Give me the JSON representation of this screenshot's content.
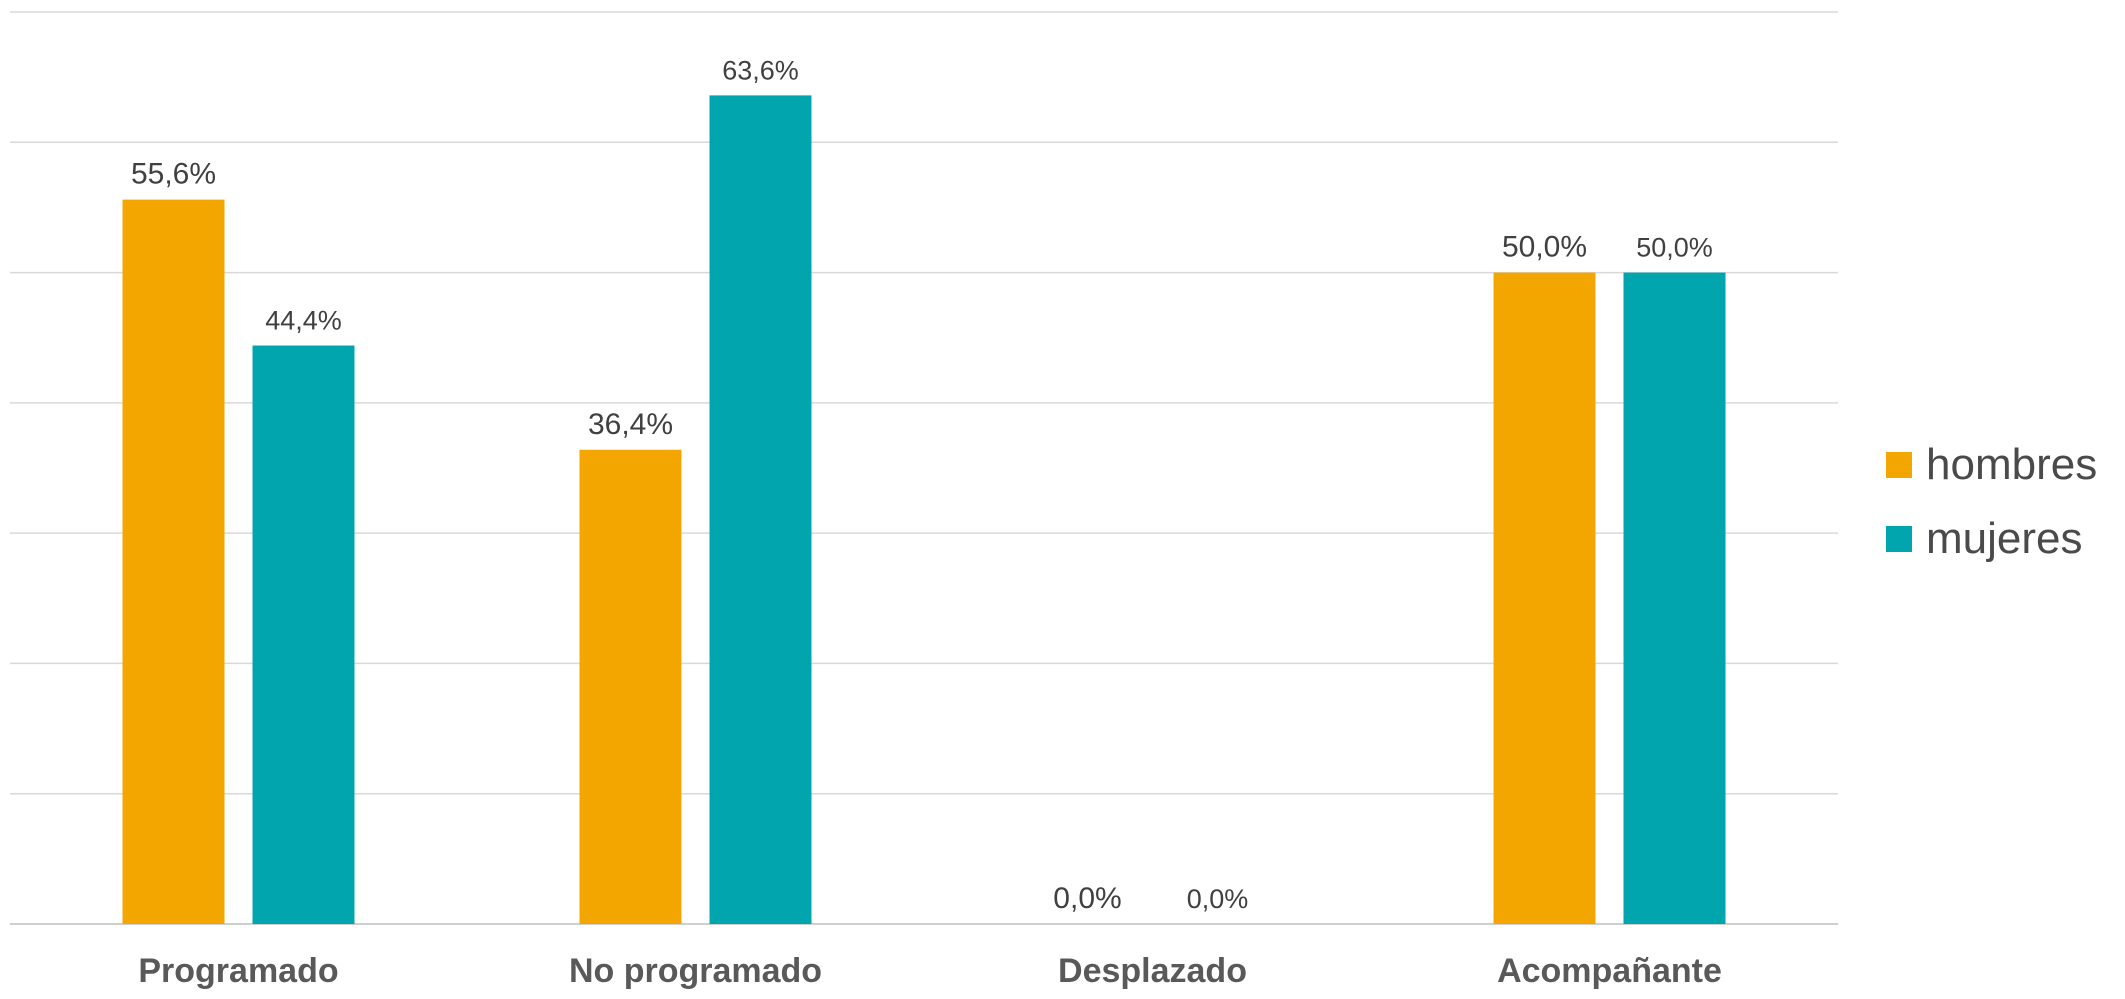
{
  "chart_data": {
    "type": "bar",
    "categories": [
      "Programado",
      "No programado",
      "Desplazado",
      "Acompañante"
    ],
    "series": [
      {
        "name": "hombres",
        "color": "#F4A600",
        "values": [
          55.6,
          36.4,
          0.0,
          50.0
        ],
        "labels": [
          "55,6%",
          "36,4%",
          "0,0%",
          "50,0%"
        ]
      },
      {
        "name": "mujeres",
        "color": "#00A5AE",
        "values": [
          44.4,
          63.6,
          0.0,
          50.0
        ],
        "labels": [
          "44,4%",
          "63,6%",
          "0,0%",
          "50,0%"
        ]
      }
    ],
    "ylim": [
      0,
      70
    ],
    "grid": true,
    "legend_position": "right",
    "title": "",
    "xlabel": "",
    "ylabel": ""
  }
}
